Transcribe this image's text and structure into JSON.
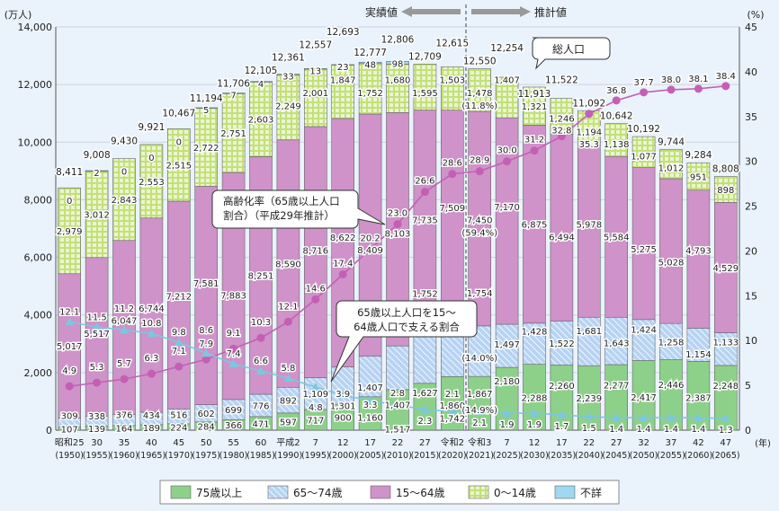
{
  "chart_data": {
    "type": "bar",
    "stacked": true,
    "left_axis": {
      "label": "(万人)",
      "ylim": [
        0,
        14000
      ],
      "ticks": [
        "0",
        "2,000",
        "4,000",
        "6,000",
        "8,000",
        "10,000",
        "12,000",
        "14,000"
      ]
    },
    "right_axis": {
      "label": "(%)",
      "ylim": [
        0,
        45
      ],
      "ticks": [
        "0",
        "5",
        "10",
        "15",
        "20",
        "25",
        "30",
        "35",
        "40",
        "45"
      ]
    },
    "x_unit": "(年)",
    "grid": true,
    "categories": [
      {
        "name": "昭和25",
        "year": "(1950)"
      },
      {
        "name": "30",
        "year": "(1955)"
      },
      {
        "name": "35",
        "year": "(1960)"
      },
      {
        "name": "40",
        "year": "(1965)"
      },
      {
        "name": "45",
        "year": "(1970)"
      },
      {
        "name": "50",
        "year": "(1975)"
      },
      {
        "name": "55",
        "year": "(1980)"
      },
      {
        "name": "60",
        "year": "(1985)"
      },
      {
        "name": "平成2",
        "year": "(1990)"
      },
      {
        "name": "7",
        "year": "(1995)"
      },
      {
        "name": "12",
        "year": "(2000)"
      },
      {
        "name": "17",
        "year": "(2005)"
      },
      {
        "name": "22",
        "year": "(2010)"
      },
      {
        "name": "27",
        "year": "(2015)"
      },
      {
        "name": "令和2",
        "year": "(2020)"
      },
      {
        "name": "令和3",
        "year": "(2021)"
      },
      {
        "name": "7",
        "year": "(2025)"
      },
      {
        "name": "12",
        "year": "(2030)"
      },
      {
        "name": "17",
        "year": "(2035)"
      },
      {
        "name": "22",
        "year": "(2040)"
      },
      {
        "name": "27",
        "year": "(2045)"
      },
      {
        "name": "32",
        "year": "(2050)"
      },
      {
        "name": "37",
        "year": "(2055)"
      },
      {
        "name": "42",
        "year": "(2060)"
      },
      {
        "name": "47",
        "year": "(2065)"
      }
    ],
    "totals": [
      "8,411",
      "9,008",
      "9,430",
      "9,921",
      "10,467",
      "11,194",
      "11,706",
      "12,105",
      "12,361",
      "12,557",
      "12,693",
      "12,777",
      "12,806",
      "12,709",
      "12,615",
      "12,550",
      "12,254",
      "11,913",
      "11,522",
      "11,092",
      "10,642",
      "10,192",
      "9,744",
      "9,284",
      "8,808"
    ],
    "series": [
      {
        "name": "75歳以上",
        "color": "#8dd08a",
        "values": [
          107,
          139,
          164,
          189,
          224,
          284,
          366,
          471,
          597,
          717,
          900,
          1160,
          1407,
          1627,
          1860,
          1867,
          2180,
          2288,
          2260,
          2239,
          2277,
          2417,
          2446,
          2387,
          2248
        ]
      },
      {
        "name": "65～74歳",
        "color": "#a9c9f0",
        "values": [
          309,
          338,
          376,
          434,
          516,
          602,
          699,
          776,
          892,
          1109,
          1301,
          1407,
          1517,
          1752,
          1742,
          1754,
          1497,
          1428,
          1522,
          1681,
          1643,
          1424,
          1258,
          1154,
          1133
        ]
      },
      {
        "name": "15～64歳",
        "color": "#cf92c9",
        "values": [
          5017,
          5517,
          6047,
          6744,
          7212,
          7581,
          7883,
          8251,
          8590,
          8716,
          8622,
          8409,
          8103,
          7735,
          7509,
          7450,
          7170,
          6875,
          6494,
          5978,
          5584,
          5275,
          5028,
          4793,
          4529
        ]
      },
      {
        "name": "0～14歳",
        "color": "#d4ea9c",
        "values": [
          2979,
          3012,
          2843,
          2553,
          2515,
          2722,
          2751,
          2603,
          2249,
          2001,
          1847,
          1752,
          1680,
          1595,
          1503,
          1478,
          1407,
          1321,
          1246,
          1194,
          1138,
          1077,
          1012,
          951,
          898
        ]
      },
      {
        "name": "不詳",
        "color": "#9fd8f0",
        "values": [
          0,
          2,
          0,
          0,
          0,
          5,
          7,
          4,
          33,
          13,
          23,
          48,
          98,
          null,
          null,
          null,
          null,
          null,
          null,
          null,
          null,
          null,
          null,
          null,
          null
        ]
      }
    ],
    "reiwa3_shares": {
      "0～14歳": "(11.8%)",
      "15～64歳": "(59.4%)",
      "65～74歳": "(14.0%)",
      "75歳以上": "(14.9%)"
    },
    "lines": [
      {
        "name": "高齢化率",
        "color": "#c45fb5",
        "axis": "right",
        "values": [
          4.9,
          5.3,
          5.7,
          6.3,
          7.1,
          7.9,
          9.1,
          10.3,
          12.1,
          14.6,
          17.4,
          20.2,
          23.0,
          26.6,
          28.6,
          28.9,
          30.0,
          31.2,
          32.8,
          35.3,
          36.8,
          37.7,
          38.0,
          38.1,
          38.4
        ]
      },
      {
        "name": "支える割合",
        "color": "#7cc7df",
        "axis": "right",
        "values": [
          12.1,
          11.5,
          11.2,
          10.8,
          9.8,
          8.6,
          7.4,
          6.6,
          5.8,
          4.8,
          3.9,
          3.3,
          2.8,
          2.3,
          2.1,
          2.1,
          1.9,
          1.9,
          1.7,
          1.5,
          1.4,
          1.4,
          1.4,
          1.4,
          1.3
        ]
      }
    ],
    "annotations": {
      "actual": "実績値",
      "projected": "推計値",
      "total_pop": "総人口",
      "aging_rate_1": "高齢化率（65歳以上人口",
      "aging_rate_2": "割合）（平成29年推計）",
      "support_1": "65歳以上人口を15～",
      "support_2": "64歳人口で支える割合"
    },
    "legend_placement": "bottom"
  }
}
